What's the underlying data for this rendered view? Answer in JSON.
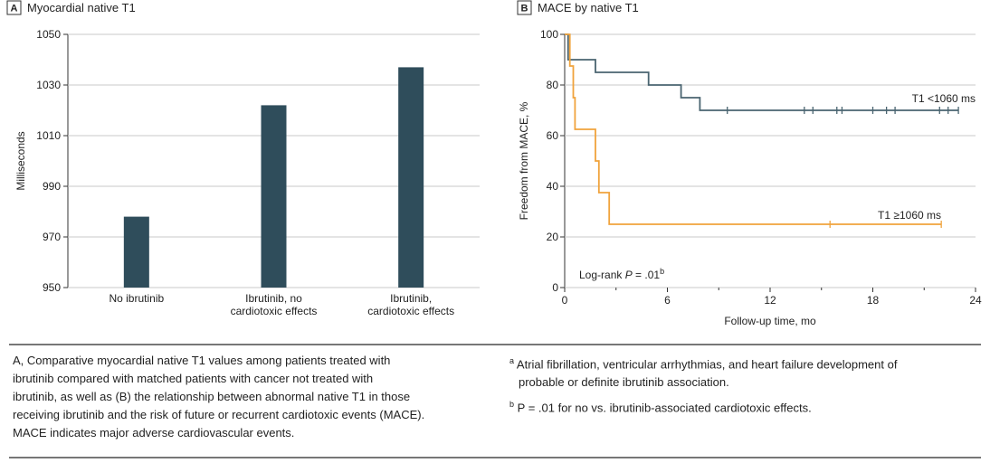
{
  "colors": {
    "bar": "#2f4d5b",
    "series_low": "#4a6470",
    "series_high": "#f0a33c",
    "grid": "#c8c8c8"
  },
  "chart_data": [
    {
      "type": "bar",
      "panel": "A",
      "title": "Myocardial native T1",
      "ylabel": "Milliseconds",
      "ylim": [
        950,
        1050
      ],
      "yticks": [
        "1050",
        "1030",
        "1010",
        "990",
        "970",
        "950"
      ],
      "categories": [
        [
          "No ibrutinib"
        ],
        [
          "Ibrutinib, no",
          "cardiotoxic effects"
        ],
        [
          "Ibrutinib,",
          "cardiotoxic effects"
        ]
      ],
      "values": [
        978,
        1022,
        1037
      ]
    },
    {
      "type": "line",
      "panel": "B",
      "title": "MACE by native T1",
      "ylabel": "Freedom from MACE, %",
      "xlabel": "Follow-up time, mo",
      "xlim": [
        0,
        24
      ],
      "ylim": [
        0,
        100
      ],
      "xticks": [
        "0",
        "6",
        "12",
        "18",
        "24"
      ],
      "yticks": [
        "100",
        "80",
        "60",
        "40",
        "20",
        "0"
      ],
      "series": [
        {
          "name": "T1 <1060 ms",
          "x": [
            0,
            0.2,
            0.2,
            1.8,
            1.8,
            4.9,
            4.9,
            6.8,
            6.8,
            7.9,
            7.9,
            23.0
          ],
          "y": [
            100,
            100,
            90,
            90,
            85,
            85,
            80,
            80,
            75,
            75,
            70,
            70
          ],
          "censored_x": [
            9.5,
            14.0,
            14.5,
            15.9,
            16.2,
            18.0,
            18.8,
            19.3,
            21.9,
            22.4,
            23.0
          ]
        },
        {
          "name": "T1 ≥1060 ms",
          "x": [
            0,
            0.3,
            0.3,
            0.5,
            0.5,
            0.6,
            0.6,
            1.8,
            1.8,
            2.0,
            2.0,
            2.6,
            2.6,
            22.0
          ],
          "y": [
            100,
            100,
            87.5,
            87.5,
            75,
            75,
            62.5,
            62.5,
            50,
            50,
            37.5,
            37.5,
            25,
            25
          ],
          "censored_x": [
            15.5,
            22.0
          ]
        }
      ],
      "annotation": {
        "text": "Log-rank P = .01",
        "prefix": "Log-rank ",
        "p_symbol": "P",
        "suffix": " = .01",
        "sup": "b"
      }
    }
  ],
  "caption": {
    "left": [
      "A, Comparative myocardial native T1 values among patients treated with",
      "ibrutinib compared with matched patients with cancer not treated with",
      "ibrutinib, as well as (B) the relationship between abnormal native T1 in those",
      "receiving ibrutinib and the risk of future or recurrent cardiotoxic events (MACE).",
      "MACE indicates major adverse cardiovascular events."
    ],
    "footnote_a_mark": "a",
    "footnote_a": [
      "Atrial fibrillation, ventricular arrhythmias, and heart failure development of",
      "probable or definite ibrutinib association."
    ],
    "footnote_b_mark": "b",
    "footnote_b": "P = .01 for no vs. ibrutinib-associated cardiotoxic effects."
  }
}
